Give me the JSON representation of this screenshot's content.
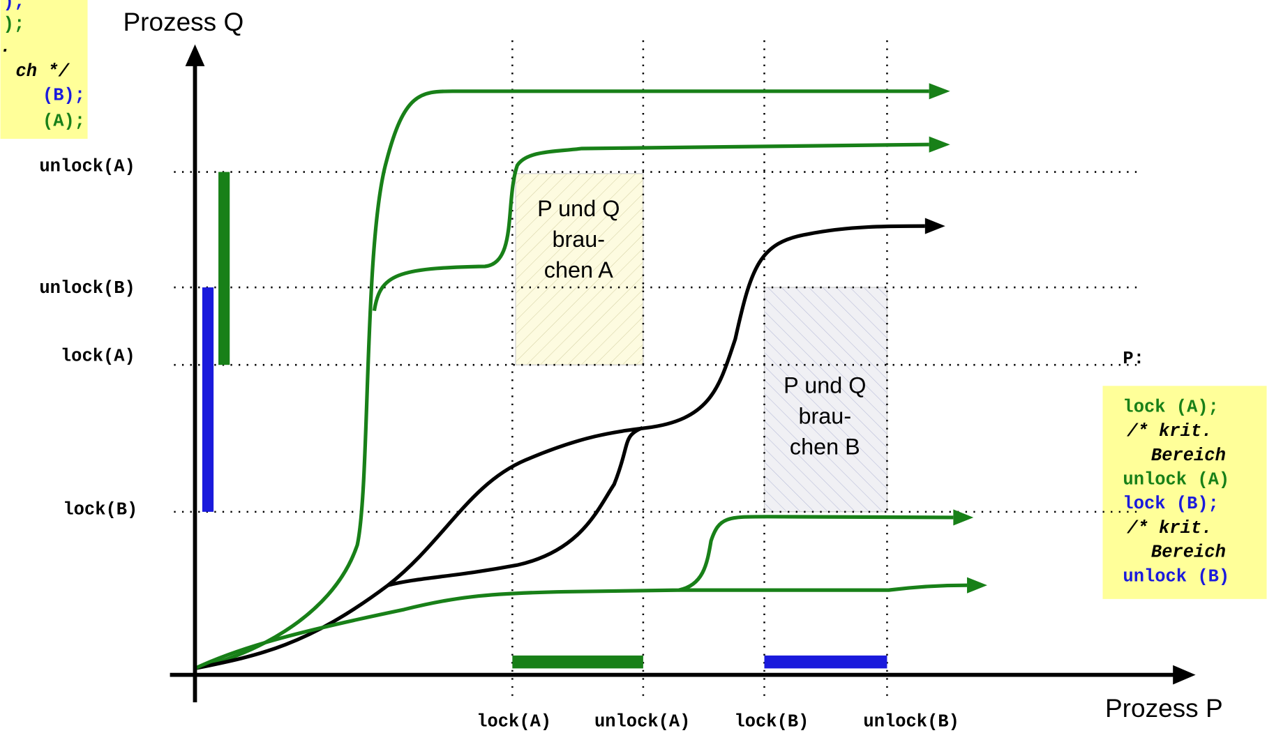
{
  "axes": {
    "x_label": "Prozess P",
    "y_label": "Prozess Q",
    "x_ticks": [
      "lock(A)",
      "unlock(A)",
      "lock(B)",
      "unlock(B)"
    ],
    "y_ticks": [
      "unlock(A)",
      "unlock(B)",
      "lock(A)",
      "lock(B)"
    ]
  },
  "regions": [
    {
      "lines": [
        "P und Q",
        "brau-",
        "chen A"
      ]
    },
    {
      "lines": [
        "P und Q",
        "brau-",
        "chen B"
      ]
    }
  ],
  "code_q": {
    "lines": [
      ");",
      ");",
      ".",
      "ch */",
      "(B);",
      "(A);"
    ]
  },
  "code_p": {
    "title": "P:",
    "lines": [
      "lock (A);",
      "/* krit.",
      "Bereich",
      "unlock (A)",
      "lock (B);",
      "/* krit.",
      "Bereich",
      "unlock (B)"
    ]
  }
}
